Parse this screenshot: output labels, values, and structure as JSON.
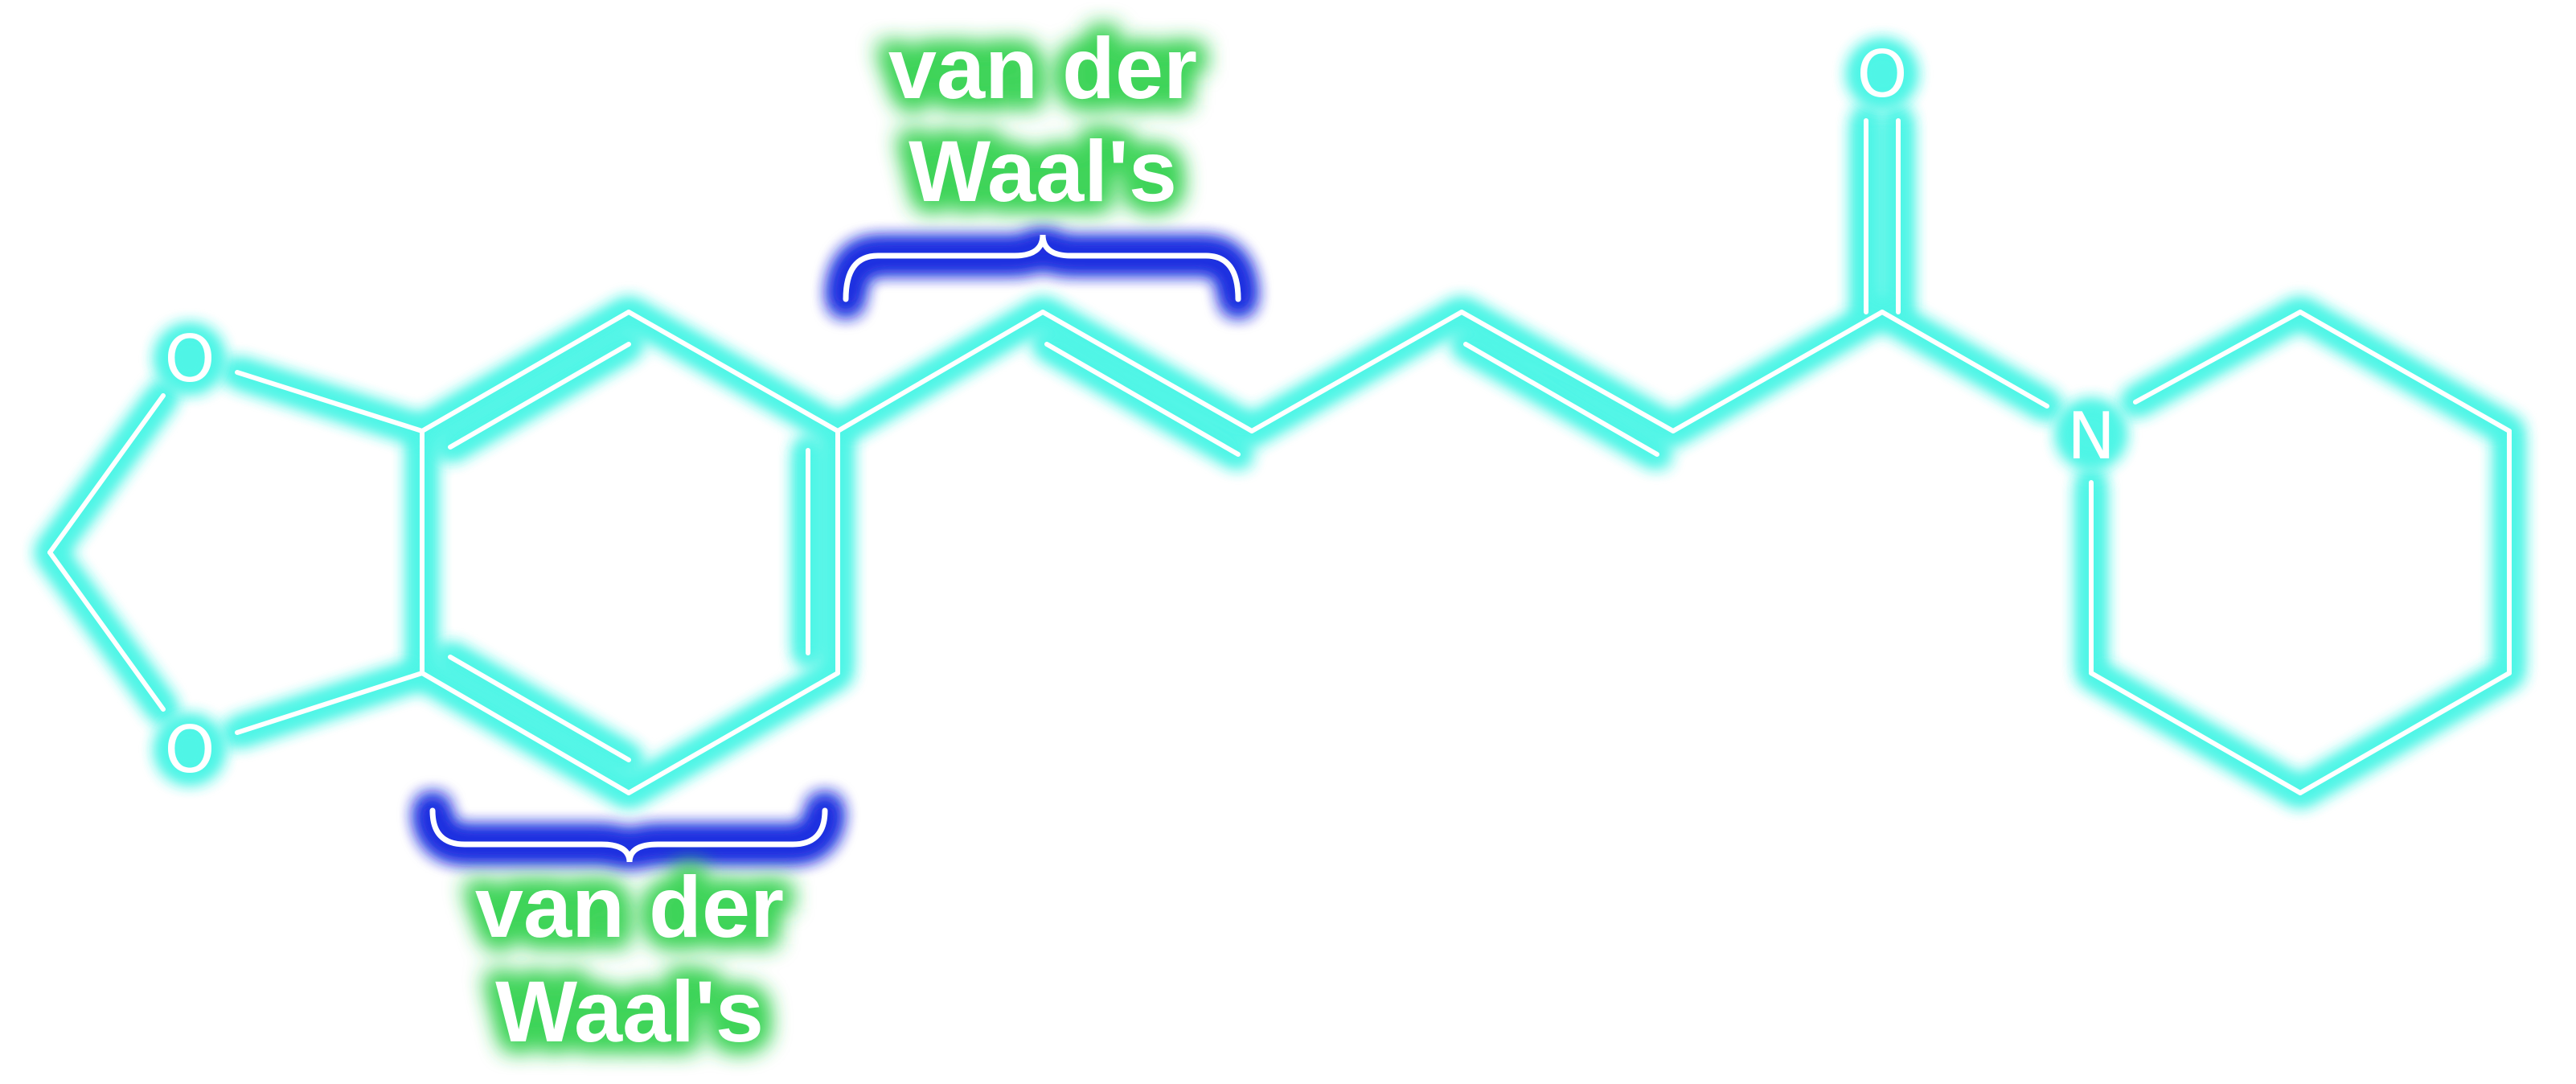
{
  "colors": {
    "background": "#ffffff",
    "line": "#ffffff",
    "bond_glow": "#4ff5e6",
    "brace_glow": "#2433e0",
    "label_glow": "#3fd45a"
  },
  "atoms": {
    "o_ring_top": "O",
    "o_ring_bottom": "O",
    "o_carbonyl": "O",
    "n_piperidine": "N"
  },
  "annotations": {
    "top": {
      "line1": "van der",
      "line2": "Waal's"
    },
    "bottom": {
      "line1": "van der",
      "line2": "Waal's"
    }
  }
}
